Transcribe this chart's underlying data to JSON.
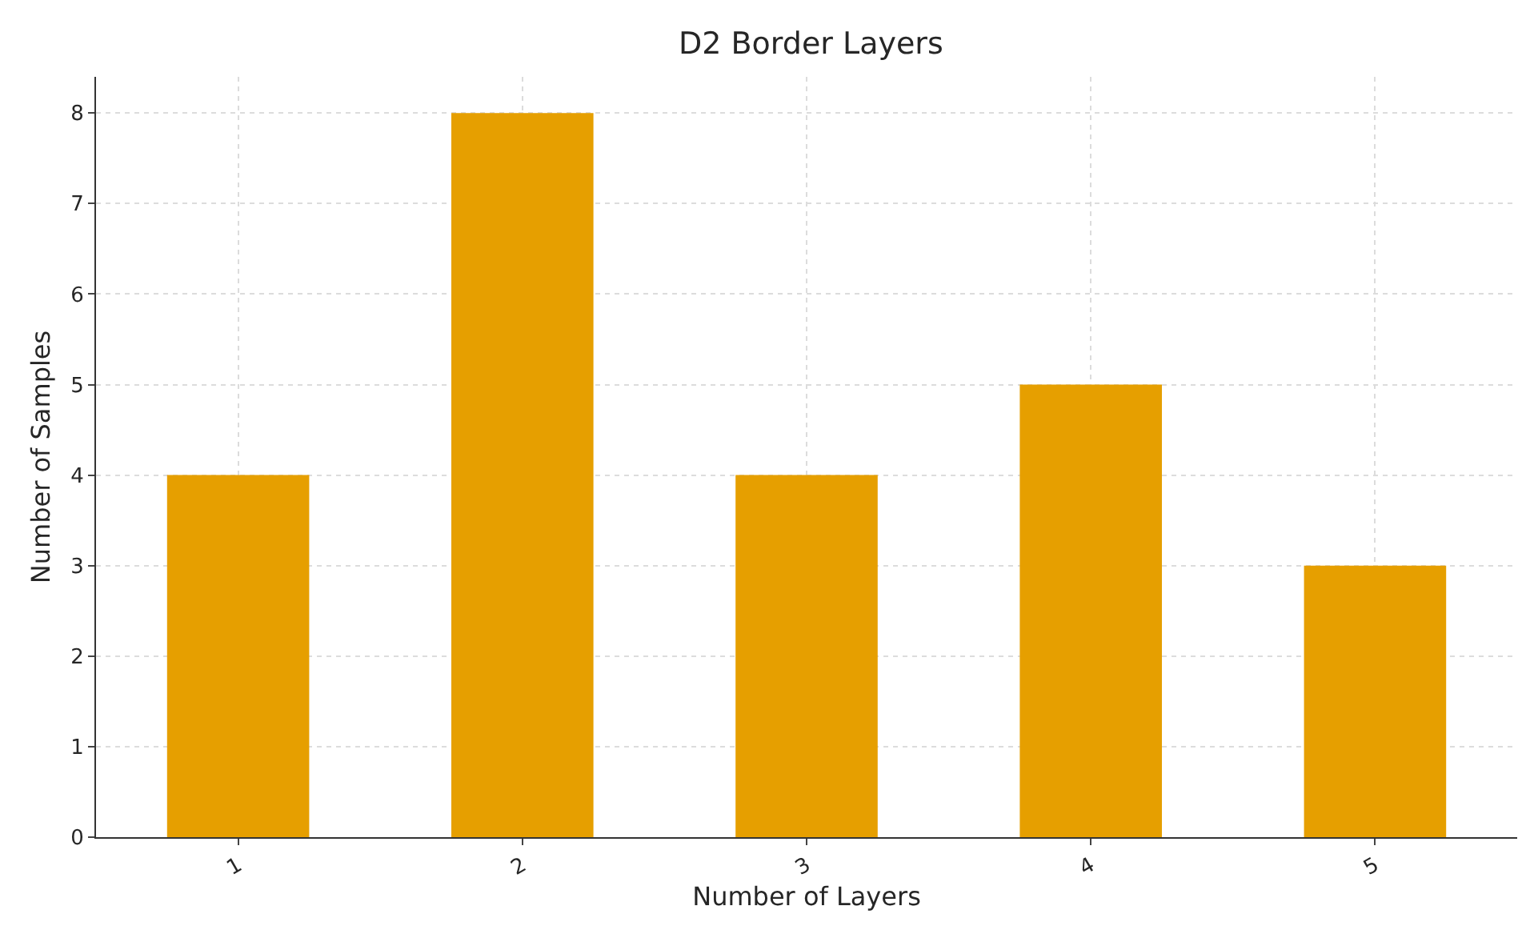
{
  "chart_data": {
    "type": "bar",
    "title": "D2 Border Layers",
    "xlabel": "Number of Layers",
    "ylabel": "Number of Samples",
    "categories": [
      "1",
      "2",
      "3",
      "4",
      "5"
    ],
    "values": [
      4,
      8,
      4,
      5,
      3
    ],
    "color": "#e69f00",
    "ylim": [
      0,
      8.4
    ],
    "yticks": [
      0,
      1,
      2,
      3,
      4,
      5,
      6,
      7,
      8
    ],
    "grid": true
  }
}
